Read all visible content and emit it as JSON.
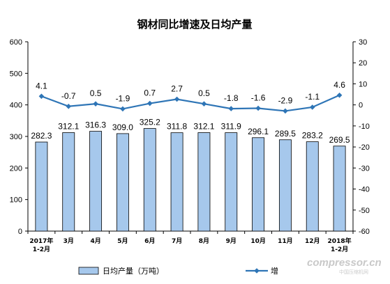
{
  "chart_data": {
    "type": "bar",
    "title": "钢材同比增速及日均产量",
    "categories": [
      [
        "2017年",
        "1-2月"
      ],
      [
        "3月"
      ],
      [
        "4月"
      ],
      [
        "5月"
      ],
      [
        "6月"
      ],
      [
        "7月"
      ],
      [
        "8月"
      ],
      [
        "9月"
      ],
      [
        "10月"
      ],
      [
        "11月"
      ],
      [
        "12月"
      ],
      [
        "2018年",
        "1-2月"
      ]
    ],
    "series": [
      {
        "name": "日均产量（万吨）",
        "type": "bar",
        "axis": "left",
        "values": [
          282.3,
          312.1,
          316.3,
          309.0,
          325.2,
          311.8,
          312.1,
          311.9,
          296.1,
          289.5,
          283.2,
          269.5
        ],
        "labels": [
          "282.3",
          "312.1",
          "316.3",
          "309.0",
          "325.2",
          "311.8",
          "312.1",
          "311.9",
          "296.1",
          "289.5",
          "283.2",
          "269.5"
        ],
        "color": "#a6c8ec",
        "border": "#000000"
      },
      {
        "name": "增",
        "type": "line",
        "axis": "right",
        "values": [
          4.1,
          -0.7,
          0.5,
          -1.9,
          0.7,
          2.7,
          0.5,
          -1.8,
          -1.6,
          -2.9,
          -1.1,
          4.6
        ],
        "labels": [
          "4.1",
          "-0.7",
          "0.5",
          "-1.9",
          "0.7",
          "2.7",
          "0.5",
          "-1.8",
          "-1.6",
          "-2.9",
          "-1.1",
          "4.6"
        ],
        "color": "#2e75b6"
      }
    ],
    "y_left": {
      "lim": [
        0,
        600
      ],
      "ticks": [
        0,
        100,
        200,
        300,
        400,
        500,
        600
      ]
    },
    "y_right": {
      "lim": [
        -60,
        30
      ],
      "ticks": [
        30,
        20,
        10,
        0,
        -10,
        -20,
        -30,
        -40,
        -50,
        -60
      ]
    },
    "grid": false,
    "legend_position": "bottom"
  },
  "watermark": {
    "brand": "compressor.cn",
    "sub": "中国压缩机网"
  }
}
